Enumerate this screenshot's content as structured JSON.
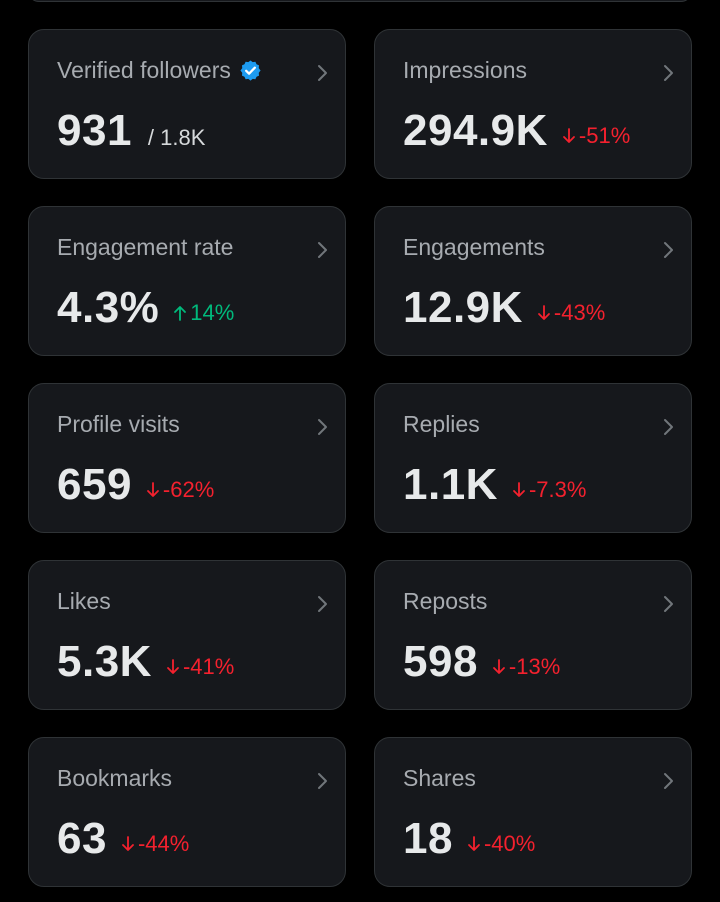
{
  "theme": {
    "background": "#000000",
    "card_background": "#16181c",
    "card_border": "#2f3336",
    "negative_color": "#f4212e",
    "positive_color": "#00ba7c",
    "verified_color": "#1d9bf0"
  },
  "metrics": [
    {
      "id": "verified-followers",
      "label": "Verified followers",
      "value": "931",
      "total": "/ 1.8K",
      "verified_icon": "verified-badge-icon"
    },
    {
      "id": "impressions",
      "label": "Impressions",
      "value": "294.9K",
      "change": "-51%",
      "direction": "down"
    },
    {
      "id": "engagement-rate",
      "label": "Engagement rate",
      "value": "4.3%",
      "change": "14%",
      "direction": "up"
    },
    {
      "id": "engagements",
      "label": "Engagements",
      "value": "12.9K",
      "change": "-43%",
      "direction": "down"
    },
    {
      "id": "profile-visits",
      "label": "Profile visits",
      "value": "659",
      "change": "-62%",
      "direction": "down"
    },
    {
      "id": "replies",
      "label": "Replies",
      "value": "1.1K",
      "change": "-7.3%",
      "direction": "down"
    },
    {
      "id": "likes",
      "label": "Likes",
      "value": "5.3K",
      "change": "-41%",
      "direction": "down"
    },
    {
      "id": "reposts",
      "label": "Reposts",
      "value": "598",
      "change": "-13%",
      "direction": "down"
    },
    {
      "id": "bookmarks",
      "label": "Bookmarks",
      "value": "63",
      "change": "-44%",
      "direction": "down"
    },
    {
      "id": "shares",
      "label": "Shares",
      "value": "18",
      "change": "-40%",
      "direction": "down"
    }
  ]
}
